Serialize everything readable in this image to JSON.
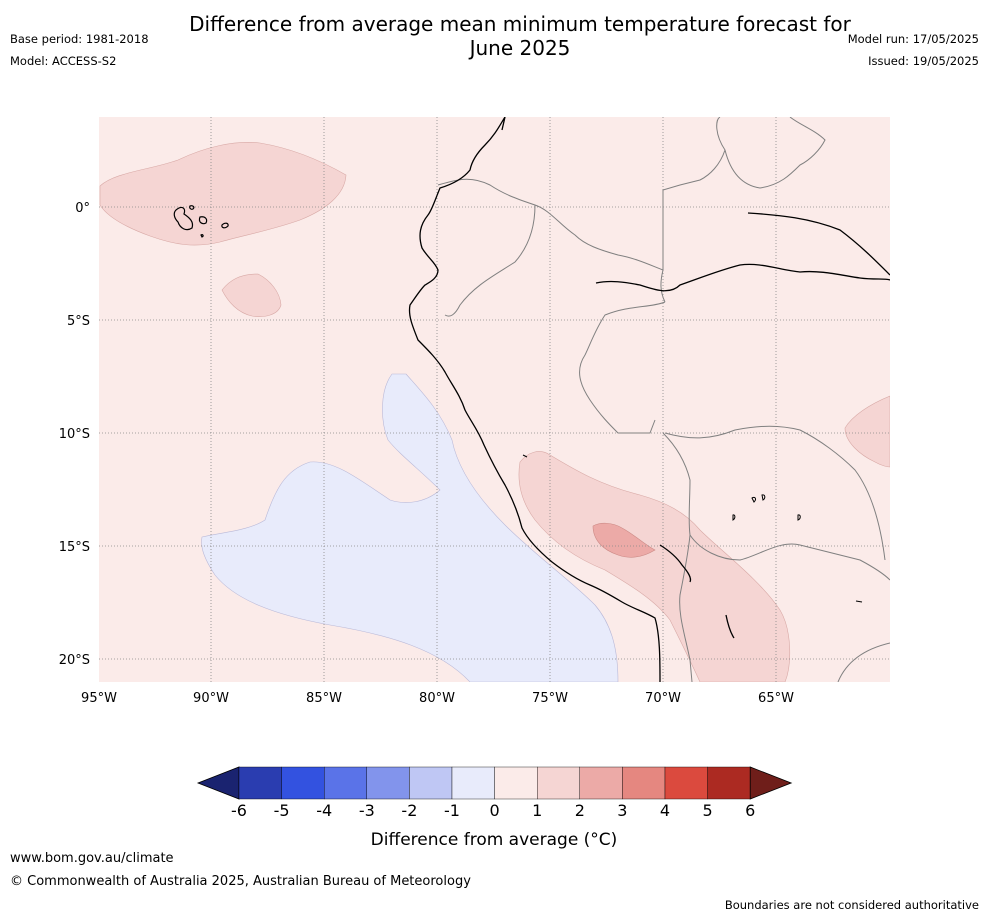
{
  "header": {
    "title_line1": "Difference from average mean minimum temperature forecast for",
    "title_line2": "June 2025",
    "base_period": "Base period: 1981-2018",
    "model": "Model: ACCESS-S2",
    "model_run": "Model run: 17/05/2025",
    "issued": "Issued: 19/05/2025"
  },
  "map": {
    "lon_labels": [
      "95°W",
      "90°W",
      "85°W",
      "80°W",
      "75°W",
      "70°W",
      "65°W"
    ],
    "lat_labels": [
      "0°",
      "5°S",
      "10°S",
      "15°S",
      "20°S"
    ],
    "colors": {
      "bin_0_1": "#fbebe9",
      "bin_1_2": "#f5d5d3",
      "bin_2_3": "#ecaaa7",
      "bin_m1_0": "#e8ebfb",
      "coast": "#000000",
      "border": "#808080"
    }
  },
  "colorbar": {
    "ticks": [
      "-6",
      "-5",
      "-4",
      "-3",
      "-2",
      "-1",
      "0",
      "1",
      "2",
      "3",
      "4",
      "5",
      "6"
    ],
    "colors": [
      "#1a2370",
      "#2a3db0",
      "#3352e0",
      "#5a73e8",
      "#8294ec",
      "#bfc7f4",
      "#e8ebfb",
      "#fbebe9",
      "#f5d5d3",
      "#ecaaa7",
      "#e58780",
      "#db4a3e",
      "#ac2a22",
      "#6f1e1a"
    ],
    "label": "Difference from average (°C)"
  },
  "footer": {
    "url": "www.bom.gov.au/climate",
    "copyright": "© Commonwealth of Australia 2025, Australian Bureau of Meteorology",
    "note": "Boundaries are not considered authoritative"
  }
}
